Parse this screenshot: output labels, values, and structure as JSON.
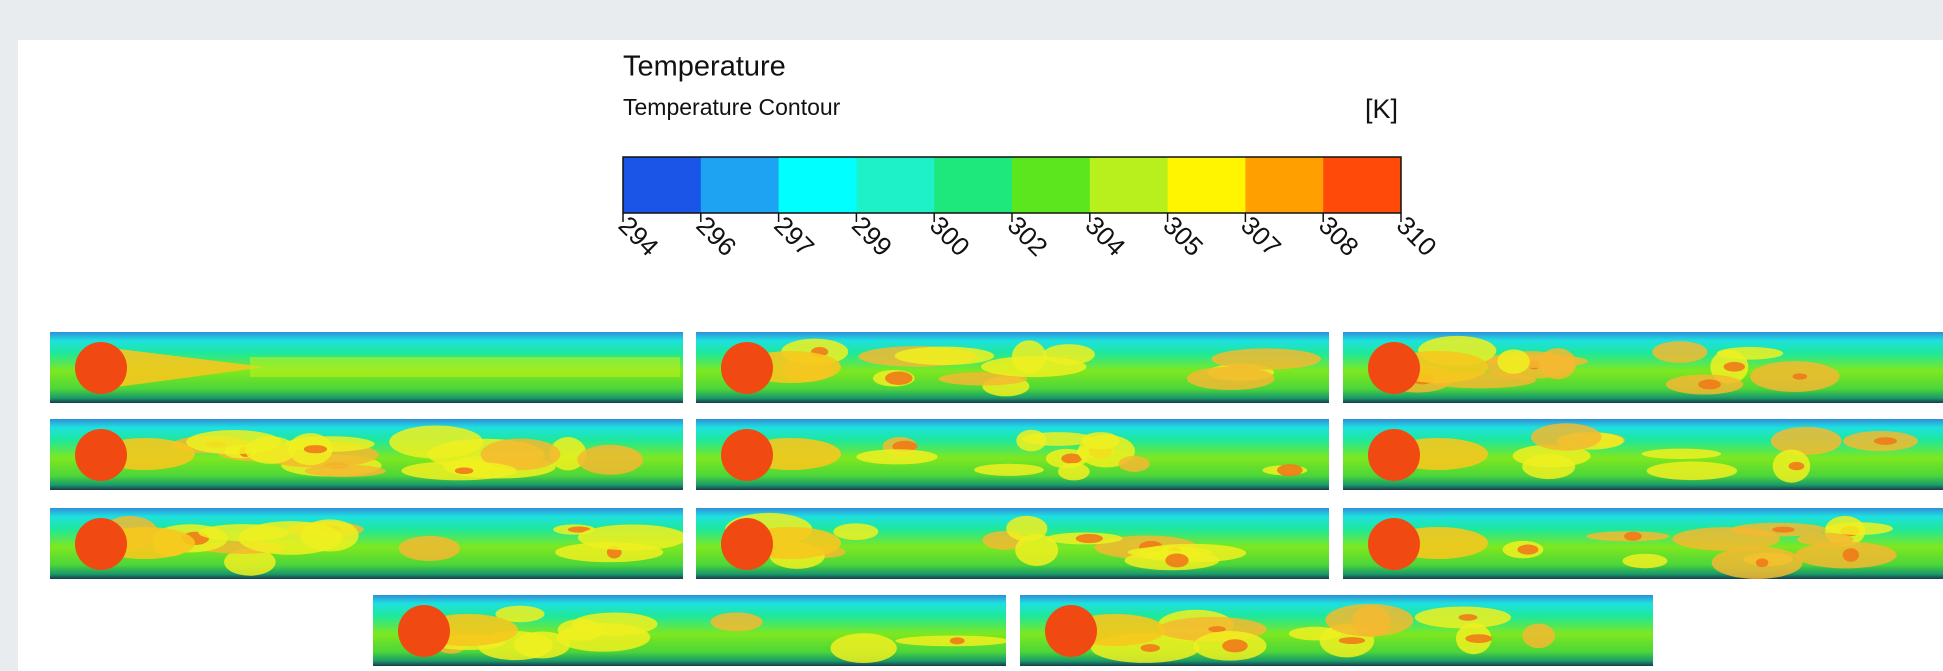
{
  "legend": {
    "title": "Temperature",
    "subtitle": "Temperature Contour",
    "unit": "[K]",
    "ticks": [
      294,
      296,
      297,
      299,
      300,
      302,
      304,
      305,
      307,
      308,
      310
    ],
    "colors": [
      "#1a55e8",
      "#1ea2f2",
      "#00ffff",
      "#1ef0c8",
      "#1ee87c",
      "#5ce61e",
      "#b8f01e",
      "#fff500",
      "#ffa000",
      "#ff4a0a"
    ]
  }
}
